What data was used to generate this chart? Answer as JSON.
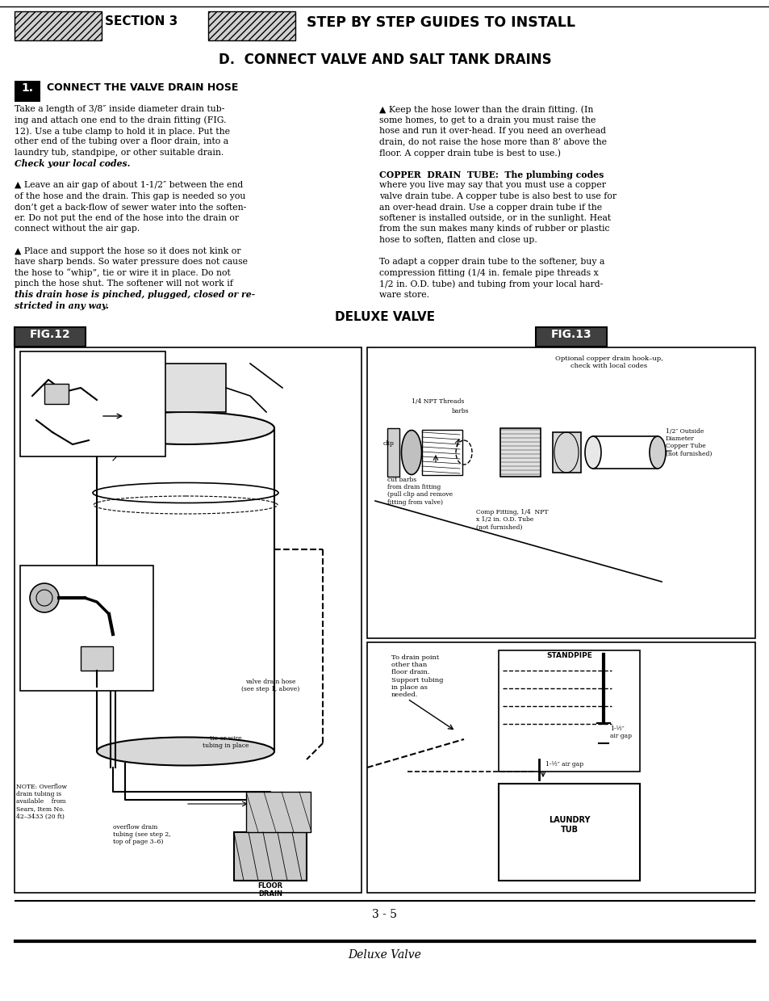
{
  "bg_color": "#ffffff",
  "page_width": 9.54,
  "page_height": 12.39,
  "dpi": 100,
  "header_section": "SECTION 3",
  "header_title": "STEP BY STEP GUIDES TO INSTALL",
  "section_d_title": "D.  CONNECT VALVE AND SALT TANK DRAINS",
  "step1_label": "1.",
  "step1_heading": "CONNECT THE VALVE DRAIN HOSE",
  "col1_paragraphs": [
    {
      "text": "Take a length of 3/8″ inside diameter drain tub-\ning and attach one end to the drain fitting (FIG.\n12). Use a tube clamp to hold it in place. Put the\nother end of the tubing over a floor drain, into a\nlaundry tub, standpipe, or other suitable drain.\n",
      "bold_end": false
    },
    {
      "text": "Check your local codes.",
      "bold": true,
      "italic": true
    },
    {
      "text": "\n▲ Leave an air gap of about 1-1/2″ between the end\nof the hose and the drain. This gap is needed so you\ndon’t get a back-flow of sewer water into the soften-\ner. ",
      "bold": false
    },
    {
      "text": "Do not",
      "bold": true
    },
    {
      "text": " put the end of the hose ",
      "bold": false
    },
    {
      "text": "into",
      "bold": true
    },
    {
      "text": " the drain or\nconnect without the air gap.\n\n▲ Place and support the hose so it does not kink or\nhave sharp bends. So water pressure does not cause\nthe hose to “whip”, tie or wire it in place. Do not\npinch the hose shut. ",
      "bold": false
    },
    {
      "text": "The softener will not work if\nthis drain hose is pinched, plugged, closed or re-\nstricted in any way.",
      "bold": true,
      "italic": true
    }
  ],
  "col2_text_lines": [
    [
      {
        "t": "▲ Keep the hose lower than the drain fitting. (In",
        "b": false
      }
    ],
    [
      {
        "t": "some homes, to get to a drain you must raise the",
        "b": false
      }
    ],
    [
      {
        "t": "hose and run it over-head. If you need an overhead",
        "b": false
      }
    ],
    [
      {
        "t": "drain, ",
        "b": false
      },
      {
        "t": "do not raise the hose more than 8’",
        "b": true
      },
      {
        "t": " above the",
        "b": false
      }
    ],
    [
      {
        "t": "floor. A copper drain tube is best to use.)",
        "b": false
      }
    ],
    [
      {
        "t": "",
        "b": false
      }
    ],
    [
      {
        "t": "COPPER  DRAIN  TUBE: ",
        "b": true
      },
      {
        "t": "The plumbing codes",
        "b": false
      }
    ],
    [
      {
        "t": "where you live may say that you must use a copper",
        "b": false
      }
    ],
    [
      {
        "t": "valve drain tube. A copper tube is also best to use for",
        "b": false
      }
    ],
    [
      {
        "t": "an over-head drain. Use a copper drain tube if the",
        "b": false
      }
    ],
    [
      {
        "t": "softener is installed outside, or in the sunlight. Heat",
        "b": false
      }
    ],
    [
      {
        "t": "from the sun makes many kinds of rubber or plastic",
        "b": false
      }
    ],
    [
      {
        "t": "hose to soften, flatten and close up.",
        "b": false
      }
    ],
    [
      {
        "t": "",
        "b": false
      }
    ],
    [
      {
        "t": "To adapt a copper drain tube to the softener, buy a",
        "b": false
      }
    ],
    [
      {
        "t": "compression fitting (1/4 in. female pipe threads x",
        "b": false
      }
    ],
    [
      {
        "t": "1/2 in. O.D. tube) and tubing from your local hard-",
        "b": false
      }
    ],
    [
      {
        "t": "ware store.",
        "b": false
      }
    ]
  ],
  "deluxe_valve_label": "DELUXE VALVE",
  "fig12_label": "FIG.12",
  "fig13_label": "FIG.13",
  "page_num": "3 - 5",
  "footer_text": "Deluxe Valve"
}
